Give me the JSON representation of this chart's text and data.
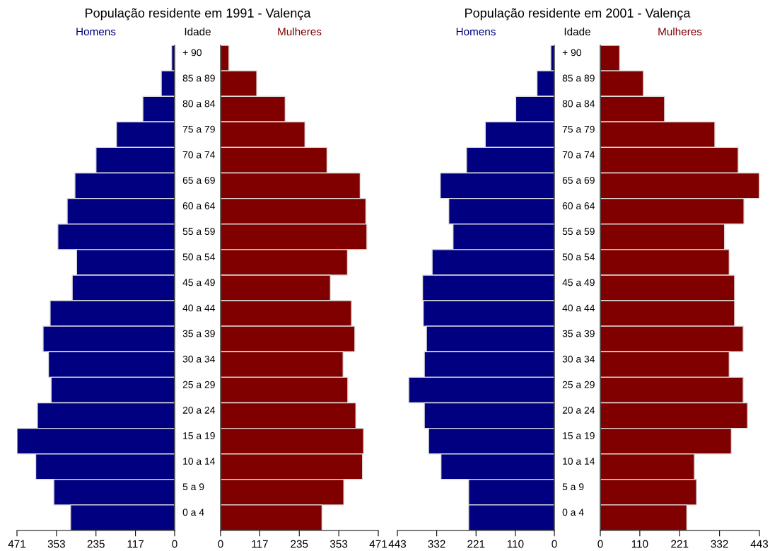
{
  "chart_data": [
    {
      "type": "bar",
      "orientation": "horizontal",
      "title": "População residente em 1991 - Valença",
      "ylabel": "Idade",
      "categories": [
        "+ 90",
        "85 a 89",
        "80 a 84",
        "75 a 79",
        "70 a 74",
        "65 a 69",
        "60 a 64",
        "55 a 59",
        "50 a 54",
        "45 a 49",
        "40 a 44",
        "35 a 39",
        "30 a 34",
        "25 a 29",
        "20 a 24",
        "15 a 19",
        "10 a 14",
        "5 a 9",
        "0 a 4"
      ],
      "series": [
        {
          "name": "Homens",
          "color": "#000080",
          "values": [
            9,
            40,
            95,
            174,
            235,
            298,
            321,
            349,
            293,
            306,
            372,
            393,
            377,
            369,
            410,
            471,
            415,
            361,
            311
          ]
        }
      ],
      "xlim": [
        471,
        0
      ],
      "xticks": [
        471,
        353,
        235,
        117,
        0
      ]
    },
    {
      "type": "bar",
      "orientation": "horizontal",
      "tick_labels": "x",
      "series": [
        {
          "name": "Mulheres",
          "color": "#800000",
          "values": [
            25,
            108,
            193,
            252,
            318,
            417,
            434,
            437,
            379,
            328,
            391,
            401,
            366,
            380,
            404,
            427,
            424,
            368,
            303
          ]
        }
      ],
      "xlim": [
        0,
        471
      ],
      "xticks": [
        0,
        117,
        235,
        353,
        471
      ]
    },
    {
      "type": "bar",
      "orientation": "horizontal",
      "title": "População residente em 2001 - Valença",
      "ylabel": "Idade",
      "categories": [
        "+ 90",
        "85 a 89",
        "80 a 84",
        "75 a 79",
        "70 a 74",
        "65 a 69",
        "60 a 64",
        "55 a 59",
        "50 a 54",
        "45 a 49",
        "40 a 44",
        "35 a 39",
        "30 a 34",
        "25 a 29",
        "20 a 24",
        "15 a 19",
        "10 a 14",
        "5 a 9",
        "0 a 4"
      ],
      "series": [
        {
          "name": "Homens",
          "color": "#000080",
          "values": [
            10,
            49,
            109,
            195,
            248,
            322,
            298,
            286,
            345,
            372,
            370,
            361,
            367,
            411,
            367,
            355,
            320,
            242,
            242
          ]
        }
      ],
      "xlim": [
        443,
        0
      ],
      "xticks": [
        443,
        332,
        221,
        110,
        0
      ]
    },
    {
      "type": "bar",
      "orientation": "horizontal",
      "tick_labels": "x",
      "series": [
        {
          "name": "Mulheres",
          "color": "#800000",
          "values": [
            54,
            120,
            179,
            319,
            384,
            443,
            400,
            346,
            359,
            374,
            374,
            398,
            359,
            398,
            410,
            365,
            262,
            268,
            241
          ]
        }
      ],
      "xlim": [
        0,
        443
      ],
      "xticks": [
        0,
        110,
        221,
        332,
        443
      ]
    }
  ]
}
